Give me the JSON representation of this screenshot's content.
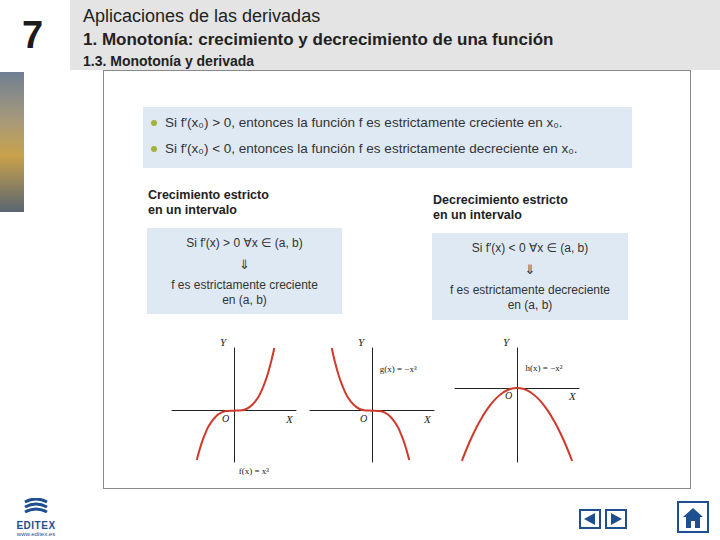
{
  "header": {
    "chapter": "7",
    "title": "Aplicaciones de las derivadas",
    "section": "1. Monotonía: crecimiento y decrecimiento de una función",
    "subsection": "1.3. Monotonía y derivada"
  },
  "rules": [
    "Si f′(x₀) > 0, entonces la función f es estrictamente creciente en x₀.",
    "Si f′(x₀) < 0, entonces la función f es estrictamente decreciente en x₀."
  ],
  "boxes": [
    {
      "heading": [
        "Crecimiento estricto",
        "en un intervalo"
      ],
      "lines": [
        "Si f′(x) > 0   ∀x ∈ (a, b)",
        "⇓",
        "f es estrictamente creciente",
        "en (a, b)"
      ]
    },
    {
      "heading": [
        "Decrecimiento estricto",
        "en un intervalo"
      ],
      "lines": [
        "Si f′(x) < 0   ∀x ∈ (a, b)",
        "⇓",
        "f es estrictamente decreciente",
        "en (a, b)"
      ]
    }
  ],
  "chart_data": [
    {
      "type": "line",
      "label": "f(x) = x³",
      "x_label": "X",
      "y_label": "Y",
      "origin_label": "O",
      "x": [
        -1.2,
        -1.1,
        -1,
        -0.9,
        -0.8,
        -0.6,
        -0.4,
        -0.2,
        0,
        0.2,
        0.4,
        0.6,
        0.8,
        0.9,
        1,
        1.1,
        1.2,
        1.3
      ],
      "values": [
        -1.73,
        -1.33,
        -1,
        -0.73,
        -0.51,
        -0.22,
        -0.06,
        -0.01,
        0,
        0.01,
        0.06,
        0.22,
        0.51,
        0.73,
        1,
        1.33,
        1.73,
        2.2
      ],
      "xlim": [
        -2,
        2
      ],
      "ylim": [
        -1.8,
        2.2
      ],
      "tick_labels": false,
      "grid": false,
      "color": "#cf3a2b"
    },
    {
      "type": "line",
      "label": "g(x) = −x³",
      "x_label": "X",
      "y_label": "Y",
      "origin_label": "O",
      "x": [
        -1.3,
        -1.2,
        -1.1,
        -1,
        -0.9,
        -0.8,
        -0.6,
        -0.4,
        -0.2,
        0,
        0.2,
        0.4,
        0.6,
        0.8,
        0.9,
        1,
        1.1,
        1.2
      ],
      "values": [
        2.2,
        1.73,
        1.33,
        1,
        0.73,
        0.51,
        0.22,
        0.06,
        0.01,
        0,
        -0.01,
        -0.06,
        -0.22,
        -0.51,
        -0.73,
        -1,
        -1.33,
        -1.73
      ],
      "xlim": [
        -2,
        2
      ],
      "ylim": [
        -1.8,
        2.2
      ],
      "tick_labels": false,
      "grid": false,
      "color": "#cf3a2b"
    },
    {
      "type": "line",
      "label": "h(x) = −x²",
      "x_label": "X",
      "y_label": "Y",
      "origin_label": "O",
      "x": [
        -1.6,
        -1.4,
        -1.2,
        -1,
        -0.8,
        -0.6,
        -0.4,
        -0.2,
        0,
        0.2,
        0.4,
        0.6,
        0.8,
        1,
        1.2,
        1.4,
        1.6
      ],
      "values": [
        -2.56,
        -1.96,
        -1.44,
        -1,
        -0.64,
        -0.36,
        -0.16,
        -0.04,
        0,
        -0.04,
        -0.16,
        -0.36,
        -0.64,
        -1,
        -1.44,
        -1.96,
        -2.56
      ],
      "xlim": [
        -1.8,
        1.8
      ],
      "ylim": [
        -2.6,
        1.4
      ],
      "tick_labels": false,
      "grid": false,
      "color": "#cf3a2b"
    }
  ],
  "logo": {
    "name": "EDITEX",
    "url": "www.editex.es"
  }
}
